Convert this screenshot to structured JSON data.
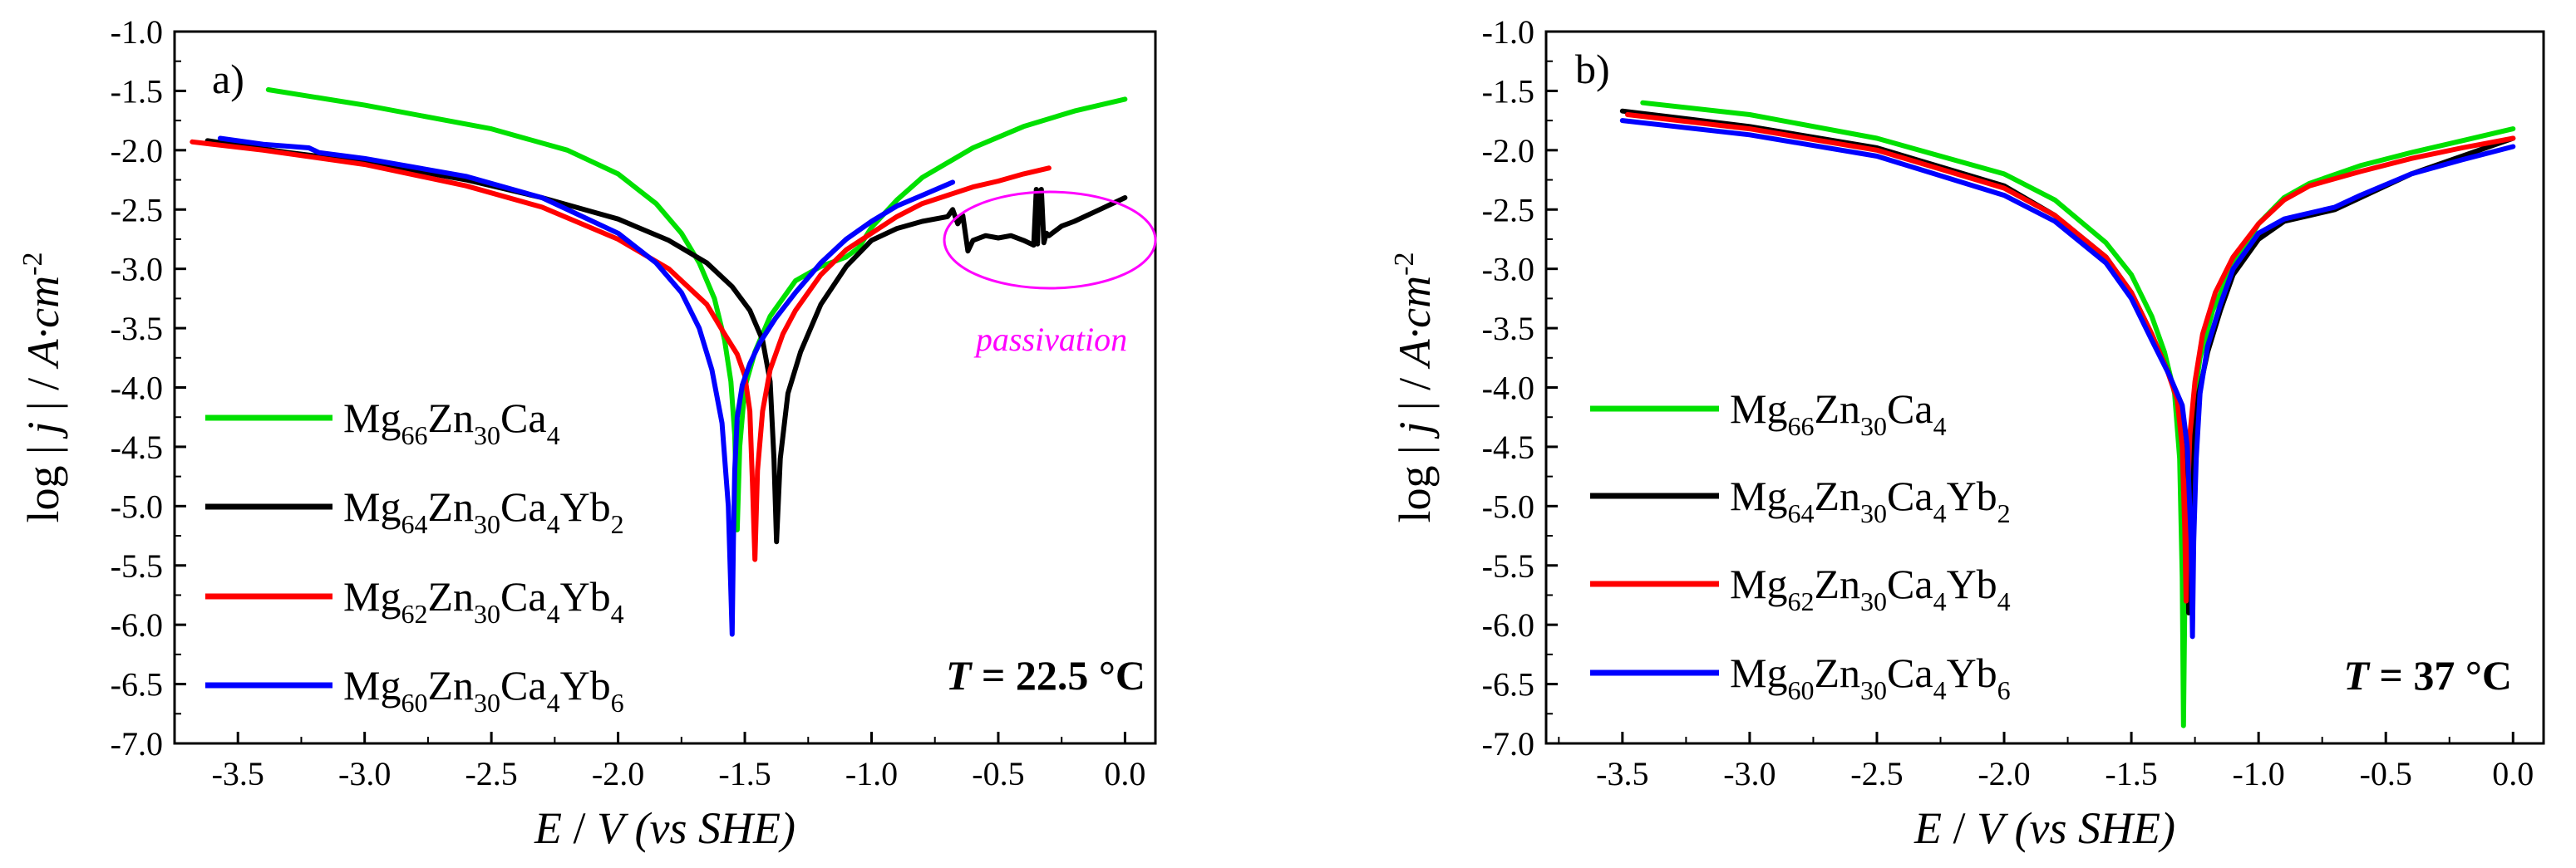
{
  "chart_data": [
    {
      "panel": "a)",
      "type": "line",
      "xlabel": {
        "pre": "E",
        "mid": " / ",
        "v": "V",
        "post": " (vs SHE)"
      },
      "ylabel": {
        "pre": "log | ",
        "j": "j",
        "mid": " | / ",
        "unit": "A·cm",
        "exp": "-2"
      },
      "xlim": [
        -3.75,
        0.12
      ],
      "ylim": [
        -7.0,
        -1.0
      ],
      "xticks": [
        -3.5,
        -3.0,
        -2.5,
        -2.0,
        -1.5,
        -1.0,
        -0.5,
        0.0
      ],
      "xtick_labels": [
        "-3.5",
        "-3.0",
        "-2.5",
        "-2.0",
        "-1.5",
        "-1.0",
        "-0.5",
        "0.0"
      ],
      "yticks": [
        -1.0,
        -1.5,
        -2.0,
        -2.5,
        -3.0,
        -3.5,
        -4.0,
        -4.5,
        -5.0,
        -5.5,
        -6.0,
        -6.5,
        -7.0
      ],
      "ytick_labels": [
        "-1.0",
        "-1.5",
        "-2.0",
        "-2.5",
        "-3.0",
        "-3.5",
        "-4.0",
        "-4.5",
        "-5.0",
        "-5.5",
        "-6.0",
        "-6.5",
        "-7.0"
      ],
      "temperature": {
        "T": "T",
        "rest": " = 22.5 °C"
      },
      "annotation": "passivation",
      "series": [
        {
          "name": "Mg66Zn30Ca4",
          "color": "#00e000",
          "legend": [
            [
              "Mg",
              ""
            ],
            [
              "66",
              "s"
            ],
            [
              "Zn",
              ""
            ],
            [
              "30",
              "s"
            ],
            [
              "Ca",
              ""
            ],
            [
              "4",
              "s"
            ]
          ],
          "x": [
            -3.38,
            -3.0,
            -2.5,
            -2.2,
            -2.0,
            -1.85,
            -1.75,
            -1.68,
            -1.62,
            -1.58,
            -1.555,
            -1.54,
            -1.53,
            -1.52,
            -1.5,
            -1.46,
            -1.4,
            -1.3,
            -1.2,
            -1.1,
            -1.05,
            -1.0,
            -0.9,
            -0.8,
            -0.6,
            -0.4,
            -0.2,
            0.0
          ],
          "y": [
            -1.49,
            -1.62,
            -1.82,
            -2.0,
            -2.2,
            -2.45,
            -2.7,
            -2.95,
            -3.25,
            -3.6,
            -3.95,
            -4.4,
            -5.2,
            -4.5,
            -4.0,
            -3.7,
            -3.4,
            -3.1,
            -2.98,
            -2.9,
            -2.82,
            -2.65,
            -2.42,
            -2.23,
            -1.98,
            -1.8,
            -1.67,
            -1.57
          ]
        },
        {
          "name": "Mg64Zn30Ca4Yb2",
          "color": "#000000",
          "legend": [
            [
              "Mg",
              ""
            ],
            [
              "64",
              "s"
            ],
            [
              "Zn",
              ""
            ],
            [
              "30",
              "s"
            ],
            [
              "Ca",
              ""
            ],
            [
              "4",
              "s"
            ],
            [
              "Yb",
              ""
            ],
            [
              "2",
              "s"
            ]
          ],
          "x": [
            -3.62,
            -3.3,
            -3.0,
            -2.6,
            -2.3,
            -2.0,
            -1.8,
            -1.65,
            -1.55,
            -1.48,
            -1.43,
            -1.4,
            -1.385,
            -1.375,
            -1.36,
            -1.33,
            -1.28,
            -1.2,
            -1.1,
            -1.0,
            -0.9,
            -0.8,
            -0.7,
            -0.68,
            -0.66,
            -0.64,
            -0.62,
            -0.6,
            -0.55,
            -0.5,
            -0.45,
            -0.4,
            -0.36,
            -0.35,
            -0.345,
            -0.34,
            -0.33,
            -0.32,
            -0.31,
            -0.3,
            -0.25,
            -0.2,
            -0.15,
            -0.1,
            -0.05,
            0.0
          ],
          "y": [
            -1.92,
            -2.02,
            -2.1,
            -2.25,
            -2.4,
            -2.58,
            -2.76,
            -2.95,
            -3.15,
            -3.35,
            -3.6,
            -3.95,
            -4.6,
            -5.3,
            -4.6,
            -4.05,
            -3.7,
            -3.3,
            -2.98,
            -2.76,
            -2.66,
            -2.6,
            -2.56,
            -2.5,
            -2.62,
            -2.55,
            -2.85,
            -2.76,
            -2.72,
            -2.74,
            -2.72,
            -2.76,
            -2.8,
            -2.33,
            -2.79,
            -2.35,
            -2.33,
            -2.78,
            -2.7,
            -2.72,
            -2.64,
            -2.6,
            -2.55,
            -2.5,
            -2.45,
            -2.4
          ]
        },
        {
          "name": "Mg62Zn30Ca4Yb4",
          "color": "#ff0000",
          "legend": [
            [
              "Mg",
              ""
            ],
            [
              "62",
              "s"
            ],
            [
              "Zn",
              ""
            ],
            [
              "30",
              "s"
            ],
            [
              "Ca",
              ""
            ],
            [
              "4",
              "s"
            ],
            [
              "Yb",
              ""
            ],
            [
              "4",
              "s"
            ]
          ],
          "x": [
            -3.68,
            -3.4,
            -3.0,
            -2.6,
            -2.3,
            -2.0,
            -1.8,
            -1.65,
            -1.58,
            -1.53,
            -1.5,
            -1.48,
            -1.47,
            -1.46,
            -1.45,
            -1.43,
            -1.4,
            -1.35,
            -1.3,
            -1.2,
            -1.1,
            -1.0,
            -0.9,
            -0.8,
            -0.7,
            -0.6,
            -0.5,
            -0.4,
            -0.3
          ],
          "y": [
            -1.93,
            -2.0,
            -2.12,
            -2.3,
            -2.48,
            -2.75,
            -3.0,
            -3.3,
            -3.55,
            -3.72,
            -3.9,
            -4.2,
            -4.8,
            -5.45,
            -4.7,
            -4.2,
            -3.85,
            -3.55,
            -3.35,
            -3.05,
            -2.84,
            -2.7,
            -2.56,
            -2.45,
            -2.38,
            -2.31,
            -2.26,
            -2.2,
            -2.15
          ]
        },
        {
          "name": "Mg60Zn30Ca4Yb6",
          "color": "#0000ff",
          "legend": [
            [
              "Mg",
              ""
            ],
            [
              "60",
              "s"
            ],
            [
              "Zn",
              ""
            ],
            [
              "30",
              "s"
            ],
            [
              "Ca",
              ""
            ],
            [
              "4",
              "s"
            ],
            [
              "Yb",
              ""
            ],
            [
              "6",
              "s"
            ]
          ],
          "x": [
            -3.57,
            -3.4,
            -3.22,
            -3.18,
            -3.0,
            -2.6,
            -2.3,
            -2.0,
            -1.85,
            -1.75,
            -1.68,
            -1.63,
            -1.59,
            -1.565,
            -1.55,
            -1.545,
            -1.54,
            -1.53,
            -1.51,
            -1.48,
            -1.44,
            -1.38,
            -1.3,
            -1.2,
            -1.1,
            -1.0,
            -0.9,
            -0.8,
            -0.68
          ],
          "y": [
            -1.9,
            -1.95,
            -1.98,
            -2.02,
            -2.07,
            -2.22,
            -2.4,
            -2.7,
            -2.95,
            -3.2,
            -3.5,
            -3.85,
            -4.3,
            -5.0,
            -6.08,
            -5.3,
            -4.7,
            -4.25,
            -3.98,
            -3.8,
            -3.62,
            -3.42,
            -3.2,
            -2.95,
            -2.75,
            -2.6,
            -2.47,
            -2.38,
            -2.27
          ]
        }
      ]
    },
    {
      "panel": "b)",
      "type": "line",
      "xlabel": {
        "pre": "E",
        "mid": " / ",
        "v": "V",
        "post": " (vs SHE)"
      },
      "ylabel": {
        "pre": "log | ",
        "j": "j",
        "mid": " | / ",
        "unit": "A·cm",
        "exp": "-2"
      },
      "xlim": [
        -3.8,
        0.12
      ],
      "ylim": [
        -7.0,
        -1.0
      ],
      "xticks": [
        -3.5,
        -3.0,
        -2.5,
        -2.0,
        -1.5,
        -1.0,
        -0.5,
        0.0
      ],
      "xtick_labels": [
        "-3.5",
        "-3.0",
        "-2.5",
        "-2.0",
        "-1.5",
        "-1.0",
        "-0.5",
        "0.0"
      ],
      "yticks": [
        -1.0,
        -1.5,
        -2.0,
        -2.5,
        -3.0,
        -3.5,
        -4.0,
        -4.5,
        -5.0,
        -5.5,
        -6.0,
        -6.5,
        -7.0
      ],
      "ytick_labels": [
        "-1.0",
        "-1.5",
        "-2.0",
        "-2.5",
        "-3.0",
        "-3.5",
        "-4.0",
        "-4.5",
        "-5.0",
        "-5.5",
        "-6.0",
        "-6.5",
        "-7.0"
      ],
      "temperature": {
        "T": "T",
        "rest": " = 37 °C"
      },
      "series": [
        {
          "name": "Mg66Zn30Ca4",
          "color": "#00e000",
          "legend": [
            [
              "Mg",
              ""
            ],
            [
              "66",
              "s"
            ],
            [
              "Zn",
              ""
            ],
            [
              "30",
              "s"
            ],
            [
              "Ca",
              ""
            ],
            [
              "4",
              "s"
            ]
          ],
          "x": [
            -3.42,
            -3.0,
            -2.5,
            -2.0,
            -1.8,
            -1.6,
            -1.5,
            -1.42,
            -1.37,
            -1.33,
            -1.31,
            -1.3,
            -1.295,
            -1.29,
            -1.28,
            -1.26,
            -1.23,
            -1.18,
            -1.1,
            -1.0,
            -0.9,
            -0.8,
            -0.6,
            -0.4,
            -0.2,
            0.0
          ],
          "y": [
            -1.6,
            -1.7,
            -1.9,
            -2.2,
            -2.42,
            -2.78,
            -3.05,
            -3.4,
            -3.7,
            -4.05,
            -4.6,
            -5.6,
            -6.85,
            -5.8,
            -4.9,
            -4.2,
            -3.75,
            -3.35,
            -2.98,
            -2.62,
            -2.4,
            -2.28,
            -2.13,
            -2.02,
            -1.92,
            -1.82
          ]
        },
        {
          "name": "Mg64Zn30Ca4Yb2",
          "color": "#000000",
          "legend": [
            [
              "Mg",
              ""
            ],
            [
              "64",
              "s"
            ],
            [
              "Zn",
              ""
            ],
            [
              "30",
              "s"
            ],
            [
              "Ca",
              ""
            ],
            [
              "4",
              "s"
            ],
            [
              "Yb",
              ""
            ],
            [
              "2",
              "s"
            ]
          ],
          "x": [
            -3.5,
            -3.0,
            -2.5,
            -2.0,
            -1.8,
            -1.6,
            -1.5,
            -1.42,
            -1.35,
            -1.31,
            -1.29,
            -1.28,
            -1.275,
            -1.27,
            -1.26,
            -1.24,
            -1.2,
            -1.15,
            -1.1,
            -1.0,
            -0.9,
            -0.8,
            -0.7,
            -0.6,
            -0.4,
            -0.2,
            0.0
          ],
          "y": [
            -1.67,
            -1.8,
            -1.98,
            -2.3,
            -2.55,
            -2.9,
            -3.2,
            -3.55,
            -3.9,
            -4.15,
            -4.45,
            -5.0,
            -5.9,
            -5.1,
            -4.6,
            -4.1,
            -3.7,
            -3.35,
            -3.05,
            -2.75,
            -2.6,
            -2.55,
            -2.5,
            -2.4,
            -2.2,
            -2.05,
            -1.9
          ]
        },
        {
          "name": "Mg62Zn30Ca4Yb4",
          "color": "#ff0000",
          "legend": [
            [
              "Mg",
              ""
            ],
            [
              "62",
              "s"
            ],
            [
              "Zn",
              ""
            ],
            [
              "30",
              "s"
            ],
            [
              "Ca",
              ""
            ],
            [
              "4",
              "s"
            ],
            [
              "Yb",
              ""
            ],
            [
              "4",
              "s"
            ]
          ],
          "x": [
            -3.48,
            -3.0,
            -2.5,
            -2.0,
            -1.8,
            -1.6,
            -1.5,
            -1.42,
            -1.36,
            -1.32,
            -1.3,
            -1.29,
            -1.285,
            -1.28,
            -1.27,
            -1.25,
            -1.22,
            -1.17,
            -1.1,
            -1.0,
            -0.9,
            -0.8,
            -0.6,
            -0.4,
            -0.2,
            0.0
          ],
          "y": [
            -1.7,
            -1.82,
            -2.0,
            -2.32,
            -2.55,
            -2.9,
            -3.2,
            -3.55,
            -3.85,
            -4.1,
            -4.5,
            -5.2,
            -5.8,
            -5.0,
            -4.4,
            -3.95,
            -3.55,
            -3.2,
            -2.9,
            -2.62,
            -2.42,
            -2.3,
            -2.18,
            -2.07,
            -1.98,
            -1.9
          ]
        },
        {
          "name": "Mg60Zn30Ca4Yb6",
          "color": "#0000ff",
          "legend": [
            [
              "Mg",
              ""
            ],
            [
              "60",
              "s"
            ],
            [
              "Zn",
              ""
            ],
            [
              "30",
              "s"
            ],
            [
              "Ca",
              ""
            ],
            [
              "4",
              "s"
            ],
            [
              "Yb",
              ""
            ],
            [
              "6",
              "s"
            ]
          ],
          "x": [
            -3.5,
            -3.0,
            -2.5,
            -2.0,
            -1.8,
            -1.6,
            -1.5,
            -1.42,
            -1.35,
            -1.3,
            -1.28,
            -1.265,
            -1.26,
            -1.255,
            -1.245,
            -1.23,
            -1.2,
            -1.15,
            -1.1,
            -1.0,
            -0.9,
            -0.8,
            -0.7,
            -0.6,
            -0.4,
            -0.2,
            0.0
          ],
          "y": [
            -1.75,
            -1.87,
            -2.05,
            -2.38,
            -2.6,
            -2.95,
            -3.25,
            -3.6,
            -3.9,
            -4.15,
            -4.5,
            -5.3,
            -6.1,
            -5.3,
            -4.6,
            -4.05,
            -3.65,
            -3.3,
            -3.0,
            -2.7,
            -2.58,
            -2.53,
            -2.48,
            -2.38,
            -2.2,
            -2.08,
            -1.97
          ]
        }
      ]
    }
  ]
}
